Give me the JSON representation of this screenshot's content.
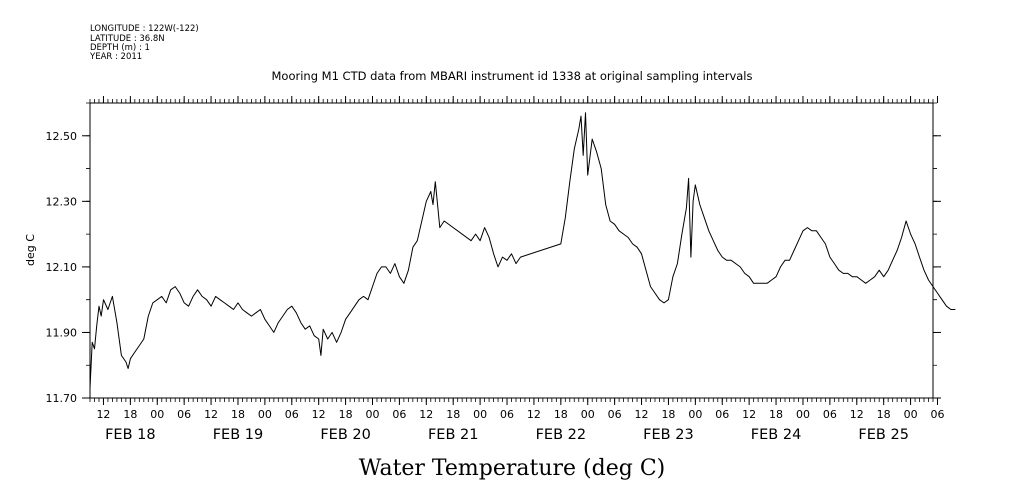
{
  "meta": {
    "longitude": "LONGITUDE : 122W(-122)",
    "latitude": "LATITUDE : 36.8N",
    "depth": "DEPTH (m) : 1",
    "year": "YEAR : 2011"
  },
  "footer_label": "Water Temperature (deg C)",
  "chart_data": {
    "type": "line",
    "title": "Mooring M1 CTD data from MBARI instrument id 1338 at original sampling intervals",
    "ylabel": "deg C",
    "xlabel": "",
    "ylim": [
      11.7,
      12.6
    ],
    "xlim": [
      "2011-02-17T09:00",
      "2011-02-25T05:00"
    ],
    "y_ticks": [
      "11.70",
      "11.90",
      "12.10",
      "12.30",
      "12.50"
    ],
    "x_hour_ticks": [
      {
        "t": "2011-02-17T12:00",
        "label": "12"
      },
      {
        "t": "2011-02-17T18:00",
        "label": "18"
      },
      {
        "t": "2011-02-18T00:00",
        "label": "00"
      },
      {
        "t": "2011-02-18T06:00",
        "label": "06"
      },
      {
        "t": "2011-02-18T12:00",
        "label": "12"
      },
      {
        "t": "2011-02-18T18:00",
        "label": "18"
      },
      {
        "t": "2011-02-19T00:00",
        "label": "00"
      },
      {
        "t": "2011-02-19T06:00",
        "label": "06"
      },
      {
        "t": "2011-02-19T12:00",
        "label": "12"
      },
      {
        "t": "2011-02-19T18:00",
        "label": "18"
      },
      {
        "t": "2011-02-20T00:00",
        "label": "00"
      },
      {
        "t": "2011-02-20T06:00",
        "label": "06"
      },
      {
        "t": "2011-02-20T12:00",
        "label": "12"
      },
      {
        "t": "2011-02-20T18:00",
        "label": "18"
      },
      {
        "t": "2011-02-21T00:00",
        "label": "00"
      },
      {
        "t": "2011-02-21T06:00",
        "label": "06"
      },
      {
        "t": "2011-02-21T12:00",
        "label": "12"
      },
      {
        "t": "2011-02-21T18:00",
        "label": "18"
      },
      {
        "t": "2011-02-22T00:00",
        "label": "00"
      },
      {
        "t": "2011-02-22T06:00",
        "label": "06"
      },
      {
        "t": "2011-02-22T12:00",
        "label": "12"
      },
      {
        "t": "2011-02-22T18:00",
        "label": "18"
      },
      {
        "t": "2011-02-23T00:00",
        "label": "00"
      },
      {
        "t": "2011-02-23T06:00",
        "label": "06"
      },
      {
        "t": "2011-02-23T12:00",
        "label": "12"
      },
      {
        "t": "2011-02-23T18:00",
        "label": "18"
      },
      {
        "t": "2011-02-24T00:00",
        "label": "00"
      },
      {
        "t": "2011-02-24T06:00",
        "label": "06"
      },
      {
        "t": "2011-02-24T12:00",
        "label": "12"
      },
      {
        "t": "2011-02-24T18:00",
        "label": "18"
      },
      {
        "t": "2011-02-25T00:00",
        "label": "00"
      },
      {
        "t": "2011-02-25T06:00",
        "label": "06"
      }
    ],
    "x_day_ticks": [
      {
        "t": "2011-02-17T18:00",
        "label": "FEB 18"
      },
      {
        "t": "2011-02-18T18:00",
        "label": "FEB 19"
      },
      {
        "t": "2011-02-19T18:00",
        "label": "FEB 20"
      },
      {
        "t": "2011-02-20T18:00",
        "label": "FEB 21"
      },
      {
        "t": "2011-02-21T18:00",
        "label": "FEB 22"
      },
      {
        "t": "2011-02-22T18:00",
        "label": "FEB 23"
      },
      {
        "t": "2011-02-23T18:00",
        "label": "FEB 24"
      },
      {
        "t": "2011-02-24T18:00",
        "label": "FEB 25"
      }
    ],
    "series": [
      {
        "color": "#000000",
        "points": [
          [
            "2011-02-17T09:00",
            11.73
          ],
          [
            "2011-02-17T09:30",
            11.87
          ],
          [
            "2011-02-17T10:00",
            11.85
          ],
          [
            "2011-02-17T10:30",
            11.92
          ],
          [
            "2011-02-17T11:00",
            11.98
          ],
          [
            "2011-02-17T11:30",
            11.95
          ],
          [
            "2011-02-17T12:00",
            12.0
          ],
          [
            "2011-02-17T13:00",
            11.97
          ],
          [
            "2011-02-17T14:00",
            12.01
          ],
          [
            "2011-02-17T15:00",
            11.93
          ],
          [
            "2011-02-17T16:00",
            11.83
          ],
          [
            "2011-02-17T17:00",
            11.81
          ],
          [
            "2011-02-17T17:30",
            11.79
          ],
          [
            "2011-02-17T18:00",
            11.82
          ],
          [
            "2011-02-17T19:00",
            11.84
          ],
          [
            "2011-02-17T20:00",
            11.86
          ],
          [
            "2011-02-17T21:00",
            11.88
          ],
          [
            "2011-02-17T22:00",
            11.95
          ],
          [
            "2011-02-17T23:00",
            11.99
          ],
          [
            "2011-02-18T00:00",
            12.0
          ],
          [
            "2011-02-18T01:00",
            12.01
          ],
          [
            "2011-02-18T02:00",
            11.99
          ],
          [
            "2011-02-18T03:00",
            12.03
          ],
          [
            "2011-02-18T04:00",
            12.04
          ],
          [
            "2011-02-18T05:00",
            12.02
          ],
          [
            "2011-02-18T06:00",
            11.99
          ],
          [
            "2011-02-18T07:00",
            11.98
          ],
          [
            "2011-02-18T08:00",
            12.01
          ],
          [
            "2011-02-18T09:00",
            12.03
          ],
          [
            "2011-02-18T10:00",
            12.01
          ],
          [
            "2011-02-18T11:00",
            12.0
          ],
          [
            "2011-02-18T12:00",
            11.98
          ],
          [
            "2011-02-18T13:00",
            12.01
          ],
          [
            "2011-02-18T14:00",
            12.0
          ],
          [
            "2011-02-18T15:00",
            11.99
          ],
          [
            "2011-02-18T16:00",
            11.98
          ],
          [
            "2011-02-18T17:00",
            11.97
          ],
          [
            "2011-02-18T18:00",
            11.99
          ],
          [
            "2011-02-18T19:00",
            11.97
          ],
          [
            "2011-02-18T20:00",
            11.96
          ],
          [
            "2011-02-18T21:00",
            11.95
          ],
          [
            "2011-02-18T22:00",
            11.96
          ],
          [
            "2011-02-18T23:00",
            11.97
          ],
          [
            "2011-02-19T00:00",
            11.94
          ],
          [
            "2011-02-19T01:00",
            11.92
          ],
          [
            "2011-02-19T02:00",
            11.9
          ],
          [
            "2011-02-19T03:00",
            11.93
          ],
          [
            "2011-02-19T04:00",
            11.95
          ],
          [
            "2011-02-19T05:00",
            11.97
          ],
          [
            "2011-02-19T06:00",
            11.98
          ],
          [
            "2011-02-19T07:00",
            11.96
          ],
          [
            "2011-02-19T08:00",
            11.93
          ],
          [
            "2011-02-19T09:00",
            11.91
          ],
          [
            "2011-02-19T10:00",
            11.92
          ],
          [
            "2011-02-19T11:00",
            11.89
          ],
          [
            "2011-02-19T12:00",
            11.88
          ],
          [
            "2011-02-19T12:30",
            11.83
          ],
          [
            "2011-02-19T13:00",
            11.91
          ],
          [
            "2011-02-19T14:00",
            11.88
          ],
          [
            "2011-02-19T15:00",
            11.9
          ],
          [
            "2011-02-19T16:00",
            11.87
          ],
          [
            "2011-02-19T17:00",
            11.9
          ],
          [
            "2011-02-19T18:00",
            11.94
          ],
          [
            "2011-02-19T19:00",
            11.96
          ],
          [
            "2011-02-19T20:00",
            11.98
          ],
          [
            "2011-02-19T21:00",
            12.0
          ],
          [
            "2011-02-19T22:00",
            12.01
          ],
          [
            "2011-02-19T23:00",
            12.0
          ],
          [
            "2011-02-20T00:00",
            12.04
          ],
          [
            "2011-02-20T01:00",
            12.08
          ],
          [
            "2011-02-20T02:00",
            12.1
          ],
          [
            "2011-02-20T03:00",
            12.1
          ],
          [
            "2011-02-20T04:00",
            12.08
          ],
          [
            "2011-02-20T05:00",
            12.11
          ],
          [
            "2011-02-20T06:00",
            12.07
          ],
          [
            "2011-02-20T07:00",
            12.05
          ],
          [
            "2011-02-20T08:00",
            12.09
          ],
          [
            "2011-02-20T09:00",
            12.16
          ],
          [
            "2011-02-20T10:00",
            12.18
          ],
          [
            "2011-02-20T11:00",
            12.24
          ],
          [
            "2011-02-20T12:00",
            12.3
          ],
          [
            "2011-02-20T13:00",
            12.33
          ],
          [
            "2011-02-20T13:30",
            12.29
          ],
          [
            "2011-02-20T14:00",
            12.36
          ],
          [
            "2011-02-20T15:00",
            12.22
          ],
          [
            "2011-02-20T16:00",
            12.24
          ],
          [
            "2011-02-20T22:00",
            12.18
          ],
          [
            "2011-02-20T23:00",
            12.2
          ],
          [
            "2011-02-21T00:00",
            12.18
          ],
          [
            "2011-02-21T01:00",
            12.22
          ],
          [
            "2011-02-21T02:00",
            12.19
          ],
          [
            "2011-02-21T03:00",
            12.14
          ],
          [
            "2011-02-21T04:00",
            12.1
          ],
          [
            "2011-02-21T05:00",
            12.13
          ],
          [
            "2011-02-21T06:00",
            12.12
          ],
          [
            "2011-02-21T07:00",
            12.14
          ],
          [
            "2011-02-21T08:00",
            12.11
          ],
          [
            "2011-02-21T09:00",
            12.13
          ],
          [
            "2011-02-21T18:00",
            12.17
          ],
          [
            "2011-02-21T19:00",
            12.25
          ],
          [
            "2011-02-21T20:00",
            12.36
          ],
          [
            "2011-02-21T21:00",
            12.46
          ],
          [
            "2011-02-21T22:00",
            12.52
          ],
          [
            "2011-02-21T22:30",
            12.56
          ],
          [
            "2011-02-21T23:00",
            12.44
          ],
          [
            "2011-02-21T23:30",
            12.57
          ],
          [
            "2011-02-22T00:00",
            12.38
          ],
          [
            "2011-02-22T01:00",
            12.49
          ],
          [
            "2011-02-22T02:00",
            12.45
          ],
          [
            "2011-02-22T03:00",
            12.4
          ],
          [
            "2011-02-22T04:00",
            12.29
          ],
          [
            "2011-02-22T05:00",
            12.24
          ],
          [
            "2011-02-22T06:00",
            12.23
          ],
          [
            "2011-02-22T07:00",
            12.21
          ],
          [
            "2011-02-22T08:00",
            12.2
          ],
          [
            "2011-02-22T09:00",
            12.19
          ],
          [
            "2011-02-22T10:00",
            12.17
          ],
          [
            "2011-02-22T11:00",
            12.16
          ],
          [
            "2011-02-22T12:00",
            12.14
          ],
          [
            "2011-02-22T13:00",
            12.09
          ],
          [
            "2011-02-22T14:00",
            12.04
          ],
          [
            "2011-02-22T15:00",
            12.02
          ],
          [
            "2011-02-22T16:00",
            12.0
          ],
          [
            "2011-02-22T17:00",
            11.99
          ],
          [
            "2011-02-22T18:00",
            12.0
          ],
          [
            "2011-02-22T19:00",
            12.07
          ],
          [
            "2011-02-22T20:00",
            12.11
          ],
          [
            "2011-02-22T21:00",
            12.2
          ],
          [
            "2011-02-22T22:00",
            12.28
          ],
          [
            "2011-02-22T22:30",
            12.37
          ],
          [
            "2011-02-22T23:00",
            12.13
          ],
          [
            "2011-02-22T23:30",
            12.3
          ],
          [
            "2011-02-23T00:00",
            12.35
          ],
          [
            "2011-02-23T01:00",
            12.29
          ],
          [
            "2011-02-23T02:00",
            12.25
          ],
          [
            "2011-02-23T03:00",
            12.21
          ],
          [
            "2011-02-23T04:00",
            12.18
          ],
          [
            "2011-02-23T05:00",
            12.15
          ],
          [
            "2011-02-23T06:00",
            12.13
          ],
          [
            "2011-02-23T07:00",
            12.12
          ],
          [
            "2011-02-23T08:00",
            12.12
          ],
          [
            "2011-02-23T09:00",
            12.11
          ],
          [
            "2011-02-23T10:00",
            12.1
          ],
          [
            "2011-02-23T11:00",
            12.08
          ],
          [
            "2011-02-23T12:00",
            12.07
          ],
          [
            "2011-02-23T13:00",
            12.05
          ],
          [
            "2011-02-23T14:00",
            12.05
          ],
          [
            "2011-02-23T15:00",
            12.05
          ],
          [
            "2011-02-23T16:00",
            12.05
          ],
          [
            "2011-02-23T17:00",
            12.06
          ],
          [
            "2011-02-23T18:00",
            12.07
          ],
          [
            "2011-02-23T19:00",
            12.1
          ],
          [
            "2011-02-23T20:00",
            12.12
          ],
          [
            "2011-02-23T21:00",
            12.12
          ],
          [
            "2011-02-23T22:00",
            12.15
          ],
          [
            "2011-02-23T23:00",
            12.18
          ],
          [
            "2011-02-24T00:00",
            12.21
          ],
          [
            "2011-02-24T01:00",
            12.22
          ],
          [
            "2011-02-24T02:00",
            12.21
          ],
          [
            "2011-02-24T03:00",
            12.21
          ],
          [
            "2011-02-24T04:00",
            12.19
          ],
          [
            "2011-02-24T05:00",
            12.17
          ],
          [
            "2011-02-24T06:00",
            12.13
          ],
          [
            "2011-02-24T07:00",
            12.11
          ],
          [
            "2011-02-24T08:00",
            12.09
          ],
          [
            "2011-02-24T09:00",
            12.08
          ],
          [
            "2011-02-24T10:00",
            12.08
          ],
          [
            "2011-02-24T11:00",
            12.07
          ],
          [
            "2011-02-24T12:00",
            12.07
          ],
          [
            "2011-02-24T13:00",
            12.06
          ],
          [
            "2011-02-24T14:00",
            12.05
          ],
          [
            "2011-02-24T15:00",
            12.06
          ],
          [
            "2011-02-24T16:00",
            12.07
          ],
          [
            "2011-02-24T17:00",
            12.09
          ],
          [
            "2011-02-24T18:00",
            12.07
          ],
          [
            "2011-02-24T19:00",
            12.09
          ],
          [
            "2011-02-24T20:00",
            12.12
          ],
          [
            "2011-02-24T21:00",
            12.15
          ],
          [
            "2011-02-24T22:00",
            12.19
          ],
          [
            "2011-02-24T23:00",
            12.24
          ],
          [
            "2011-02-25T00:00",
            12.2
          ],
          [
            "2011-02-25T01:00",
            12.17
          ],
          [
            "2011-02-25T02:00",
            12.13
          ],
          [
            "2011-02-25T03:00",
            12.09
          ],
          [
            "2011-02-25T04:00",
            12.06
          ],
          [
            "2011-02-25T05:00",
            12.04
          ],
          [
            "2011-02-25T06:00",
            12.02
          ],
          [
            "2011-02-25T07:00",
            12.0
          ],
          [
            "2011-02-25T08:00",
            11.98
          ],
          [
            "2011-02-25T09:00",
            11.97
          ],
          [
            "2011-02-25T10:00",
            11.97
          ]
        ]
      }
    ],
    "grid": false
  }
}
